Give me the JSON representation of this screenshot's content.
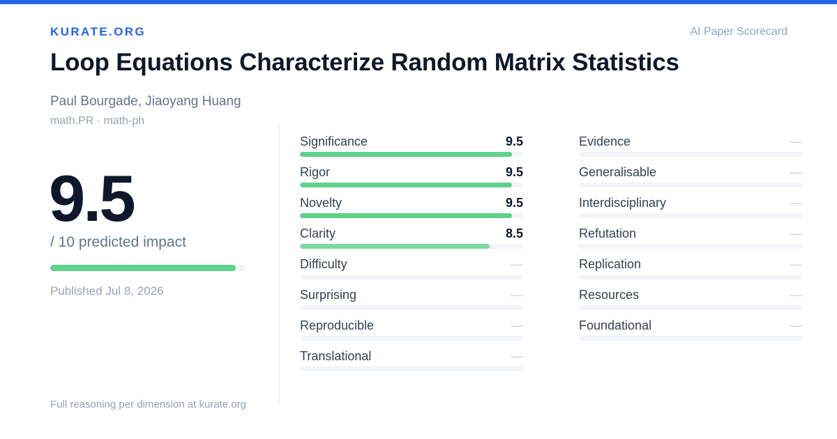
{
  "brand": "KURATE.ORG",
  "tagline": "AI Paper Scorecard",
  "paper": {
    "title": "Loop Equations Characterize Random Matrix Statistics",
    "authors": "Paul Bourgade, Jiaoyang Huang",
    "categories": "math.PR · math-ph",
    "published": "Published Jul 8, 2026"
  },
  "score": {
    "value": "9.5",
    "label": "/ 10 predicted impact",
    "fraction": 0.95
  },
  "footer": "Full reasoning per dimension at kurate.org",
  "colors": {
    "accent": "#2563eb",
    "bar_high": "#5dd28a",
    "bar_mid": "#7dd9a0",
    "track": "#f1f5f9"
  },
  "dimensions_left": [
    {
      "name": "Significance",
      "value": "9.5",
      "fraction": 0.95
    },
    {
      "name": "Rigor",
      "value": "9.5",
      "fraction": 0.95
    },
    {
      "name": "Novelty",
      "value": "9.5",
      "fraction": 0.95
    },
    {
      "name": "Clarity",
      "value": "8.5",
      "fraction": 0.85
    },
    {
      "name": "Difficulty",
      "value": "—",
      "fraction": 0
    },
    {
      "name": "Surprising",
      "value": "—",
      "fraction": 0
    },
    {
      "name": "Reproducible",
      "value": "—",
      "fraction": 0
    },
    {
      "name": "Translational",
      "value": "—",
      "fraction": 0
    }
  ],
  "dimensions_right": [
    {
      "name": "Evidence",
      "value": "—",
      "fraction": 0
    },
    {
      "name": "Generalisable",
      "value": "—",
      "fraction": 0
    },
    {
      "name": "Interdisciplinary",
      "value": "—",
      "fraction": 0
    },
    {
      "name": "Refutation",
      "value": "—",
      "fraction": 0
    },
    {
      "name": "Replication",
      "value": "—",
      "fraction": 0
    },
    {
      "name": "Resources",
      "value": "—",
      "fraction": 0
    },
    {
      "name": "Foundational",
      "value": "—",
      "fraction": 0
    }
  ]
}
